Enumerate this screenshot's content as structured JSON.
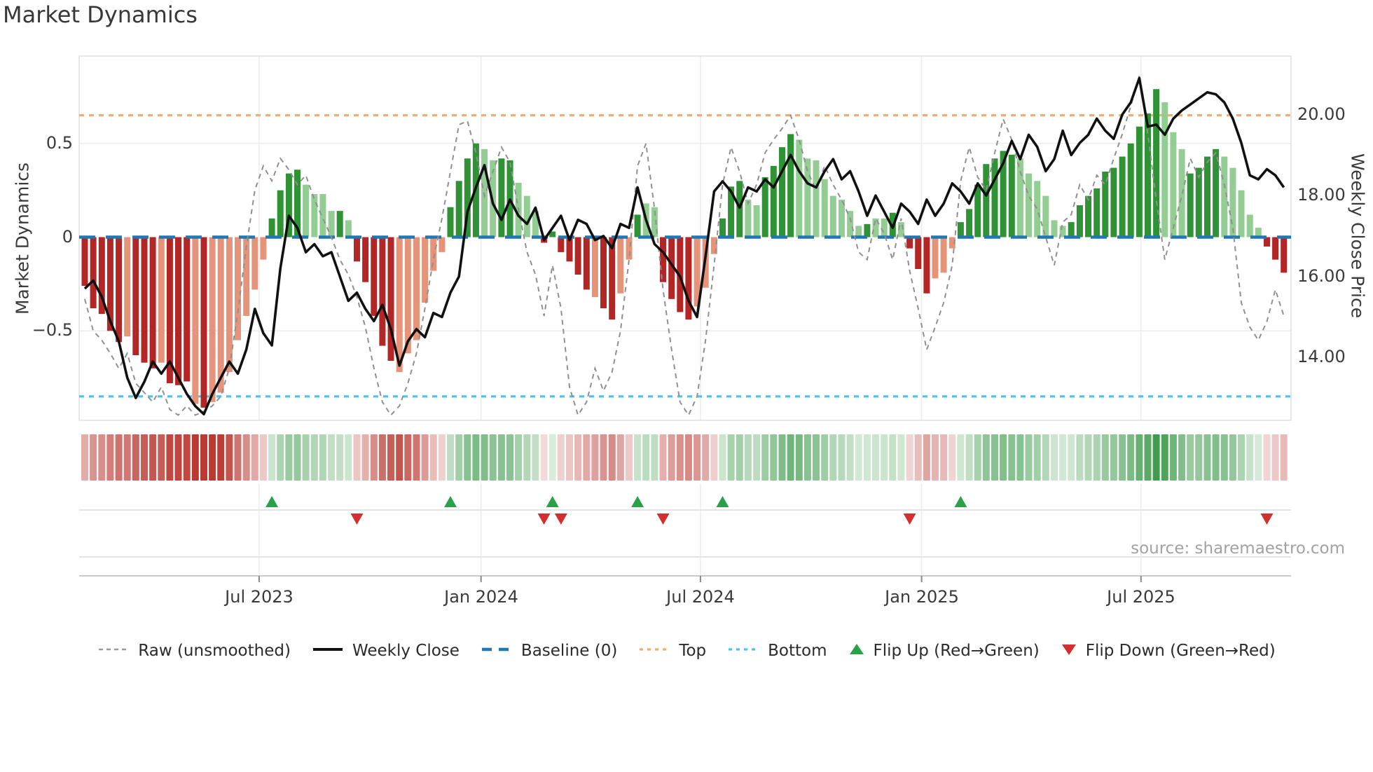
{
  "title": "Market Dynamics",
  "source": "source: sharemaestro.com",
  "axes": {
    "left": {
      "title": "Market Dynamics",
      "tick_labels": [
        "0.5",
        "0",
        "−0.5"
      ],
      "tick_values": [
        0.5,
        0,
        -0.5
      ]
    },
    "right": {
      "title": "Weekly Close Price",
      "tick_labels": [
        "20.00",
        "18.00",
        "16.00",
        "14.00"
      ],
      "tick_values": [
        20,
        18,
        16,
        14
      ]
    },
    "x": {
      "tick_labels": [
        "Jul 2023",
        "Jan 2024",
        "Jul 2024",
        "Jan 2025",
        "Jul 2025"
      ],
      "tick_weeks": [
        20.5,
        46.6,
        72.4,
        98.4,
        124.2
      ]
    }
  },
  "legend": [
    {
      "label": "Raw (unsmoothed)",
      "swatch": "dash-gray"
    },
    {
      "label": "Weekly Close",
      "swatch": "solid-black"
    },
    {
      "label": "Baseline (0)",
      "swatch": "dash-blue"
    },
    {
      "label": "Top",
      "swatch": "dot-orange"
    },
    {
      "label": "Bottom",
      "swatch": "dot-cyan"
    },
    {
      "label": "Flip Up (Red→Green)",
      "swatch": "tri-up"
    },
    {
      "label": "Flip Down (Green→Red)",
      "swatch": "tri-down"
    }
  ],
  "colors": {
    "bar_pos_strong": "#2f9235",
    "bar_pos_light": "#93cd93",
    "bar_neg_strong": "#b32626",
    "bar_neg_light": "#e59479",
    "weekly_close": "#111111",
    "raw": "#909090",
    "baseline": "#1f77b4",
    "top": "#f7ab6b",
    "bottom": "#44c8f1",
    "flip_up": "#2aa148",
    "flip_down": "#d32f2f",
    "grid": "#ebebf2",
    "spine": "#d9d9e0",
    "heat_pos": "52,150,66",
    "heat_neg": "186,58,50"
  },
  "chart_data": {
    "type": "bar+line",
    "title": "Market Dynamics",
    "x_start_date": "2023-02-10",
    "frequency": "weekly",
    "left_ylim": [
      -0.98,
      0.96
    ],
    "right_ylim": [
      12.45,
      21.42
    ],
    "baseline": 0,
    "top_level": 0.65,
    "bottom_level": -0.85,
    "bar_values": [
      -0.26,
      -0.38,
      -0.41,
      -0.5,
      -0.56,
      -0.53,
      -0.63,
      -0.67,
      -0.7,
      -0.67,
      -0.78,
      -0.79,
      -0.77,
      -0.89,
      -0.91,
      -0.88,
      -0.83,
      -0.72,
      -0.55,
      -0.42,
      -0.28,
      -0.12,
      0.1,
      0.25,
      0.34,
      0.36,
      0.28,
      0.23,
      0.23,
      0.14,
      0.14,
      0.09,
      -0.13,
      -0.24,
      -0.42,
      -0.58,
      -0.66,
      -0.72,
      -0.62,
      -0.55,
      -0.35,
      -0.18,
      -0.08,
      0.16,
      0.3,
      0.42,
      0.5,
      0.47,
      0.41,
      0.42,
      0.41,
      0.29,
      0.22,
      0.14,
      -0.03,
      0.03,
      -0.08,
      -0.13,
      -0.2,
      -0.28,
      -0.32,
      -0.38,
      -0.44,
      -0.3,
      -0.12,
      0.12,
      0.18,
      0.16,
      -0.24,
      -0.33,
      -0.4,
      -0.44,
      -0.37,
      -0.27,
      -0.09,
      0.1,
      0.27,
      0.3,
      0.2,
      0.17,
      0.32,
      0.38,
      0.48,
      0.55,
      0.52,
      0.42,
      0.41,
      0.31,
      0.22,
      0.2,
      0.14,
      0.06,
      0.07,
      0.1,
      0.1,
      0.13,
      0.08,
      -0.06,
      -0.17,
      -0.3,
      -0.22,
      -0.19,
      -0.06,
      0.08,
      0.15,
      0.28,
      0.39,
      0.42,
      0.46,
      0.44,
      0.42,
      0.34,
      0.3,
      0.22,
      0.09,
      0.06,
      0.08,
      0.17,
      0.22,
      0.26,
      0.35,
      0.37,
      0.43,
      0.5,
      0.59,
      0.66,
      0.79,
      0.72,
      0.56,
      0.47,
      0.34,
      0.37,
      0.43,
      0.47,
      0.43,
      0.37,
      0.25,
      0.12,
      0.05,
      -0.05,
      -0.12,
      -0.19
    ],
    "bar_shade": [
      "d",
      "d",
      "d",
      "d",
      "d",
      "l",
      "d",
      "d",
      "d",
      "l",
      "d",
      "d",
      "d",
      "l",
      "d",
      "l",
      "l",
      "l",
      "l",
      "l",
      "l",
      "l",
      "d",
      "d",
      "d",
      "d",
      "l",
      "l",
      "l",
      "l",
      "d",
      "l",
      "d",
      "d",
      "d",
      "d",
      "d",
      "l",
      "l",
      "l",
      "l",
      "l",
      "l",
      "d",
      "d",
      "d",
      "d",
      "l",
      "l",
      "d",
      "d",
      "l",
      "l",
      "l",
      "d",
      "d",
      "d",
      "d",
      "d",
      "d",
      "l",
      "d",
      "d",
      "l",
      "l",
      "d",
      "l",
      "l",
      "d",
      "d",
      "d",
      "d",
      "l",
      "l",
      "l",
      "d",
      "d",
      "d",
      "l",
      "l",
      "d",
      "d",
      "d",
      "d",
      "l",
      "l",
      "l",
      "l",
      "l",
      "l",
      "l",
      "l",
      "d",
      "l",
      "l",
      "d",
      "l",
      "d",
      "d",
      "d",
      "l",
      "l",
      "l",
      "d",
      "d",
      "d",
      "d",
      "d",
      "d",
      "d",
      "l",
      "l",
      "l",
      "l",
      "l",
      "l",
      "d",
      "d",
      "d",
      "d",
      "d",
      "d",
      "d",
      "d",
      "d",
      "d",
      "d",
      "l",
      "l",
      "l",
      "d",
      "d",
      "d",
      "d",
      "l",
      "l",
      "l",
      "l",
      "l",
      "d",
      "d",
      "d"
    ],
    "raw": [
      -0.33,
      -0.5,
      -0.55,
      -0.62,
      -0.7,
      -0.62,
      -0.78,
      -0.83,
      -0.88,
      -0.8,
      -0.92,
      -0.95,
      -0.9,
      -0.95,
      -0.93,
      -0.9,
      -0.85,
      -0.7,
      -0.4,
      -0.05,
      0.25,
      0.38,
      0.3,
      0.42,
      0.36,
      0.28,
      0.33,
      0.2,
      0.1,
      0.0,
      -0.12,
      -0.2,
      -0.32,
      -0.48,
      -0.7,
      -0.88,
      -0.95,
      -0.9,
      -0.78,
      -0.62,
      -0.38,
      -0.12,
      0.1,
      0.35,
      0.6,
      0.62,
      0.45,
      0.22,
      0.35,
      0.48,
      0.4,
      0.15,
      -0.08,
      -0.2,
      -0.42,
      -0.15,
      -0.38,
      -0.8,
      -0.95,
      -0.88,
      -0.7,
      -0.82,
      -0.72,
      -0.5,
      -0.12,
      0.38,
      0.5,
      0.15,
      -0.28,
      -0.6,
      -0.88,
      -0.95,
      -0.85,
      -0.55,
      -0.15,
      0.28,
      0.48,
      0.35,
      0.18,
      0.28,
      0.45,
      0.52,
      0.58,
      0.65,
      0.52,
      0.35,
      0.25,
      0.38,
      0.28,
      0.2,
      0.1,
      -0.08,
      -0.12,
      0.1,
      0.02,
      -0.12,
      0.1,
      -0.18,
      -0.38,
      -0.6,
      -0.48,
      -0.35,
      -0.15,
      0.3,
      0.48,
      0.32,
      0.25,
      0.45,
      0.63,
      0.52,
      0.35,
      0.22,
      0.15,
      0.0,
      -0.15,
      0.08,
      0.12,
      0.28,
      0.2,
      0.33,
      0.28,
      0.42,
      0.55,
      0.7,
      0.86,
      0.55,
      0.2,
      -0.12,
      0.05,
      0.22,
      0.42,
      0.32,
      0.4,
      0.45,
      0.28,
      0.05,
      -0.35,
      -0.48,
      -0.55,
      -0.45,
      -0.28,
      -0.42
    ],
    "weekly_close": [
      15.7,
      15.9,
      15.5,
      14.9,
      14.4,
      13.5,
      13.0,
      13.4,
      13.9,
      13.6,
      13.9,
      13.5,
      13.1,
      12.8,
      12.6,
      13.1,
      13.5,
      13.9,
      13.6,
      14.2,
      15.2,
      14.6,
      14.3,
      16.2,
      17.5,
      17.2,
      16.6,
      16.8,
      16.5,
      16.6,
      16.0,
      15.4,
      15.6,
      15.2,
      14.9,
      15.3,
      14.7,
      13.8,
      14.4,
      14.7,
      14.5,
      15.1,
      15.0,
      15.6,
      16.0,
      17.6,
      18.2,
      18.75,
      17.8,
      17.4,
      17.9,
      17.5,
      17.3,
      17.7,
      16.9,
      17.2,
      17.5,
      16.9,
      17.4,
      17.3,
      16.9,
      17.0,
      16.7,
      17.3,
      17.2,
      18.2,
      17.4,
      16.8,
      16.6,
      16.3,
      16.0,
      15.4,
      15.0,
      16.5,
      18.1,
      18.35,
      18.1,
      17.7,
      18.2,
      18.1,
      18.4,
      18.2,
      18.6,
      19.0,
      18.6,
      18.3,
      18.2,
      18.6,
      18.9,
      18.4,
      18.6,
      18.1,
      17.5,
      18.0,
      17.6,
      17.2,
      17.8,
      17.6,
      17.3,
      17.9,
      17.5,
      17.8,
      18.3,
      18.1,
      17.8,
      18.3,
      18.0,
      18.4,
      18.8,
      19.35,
      18.9,
      19.5,
      19.2,
      18.6,
      18.9,
      19.6,
      19.0,
      19.3,
      19.5,
      19.9,
      19.6,
      19.4,
      20.0,
      20.3,
      20.9,
      19.7,
      19.75,
      19.5,
      19.9,
      20.1,
      20.25,
      20.4,
      20.55,
      20.5,
      20.3,
      19.9,
      19.3,
      18.5,
      18.4,
      18.65,
      18.5,
      18.2
    ],
    "flip_up_weeks": [
      22,
      43,
      55,
      65,
      75,
      103
    ],
    "flip_down_weeks": [
      32,
      54,
      56,
      68,
      97,
      139
    ],
    "heatmap": "same weekly bar_values rendered as color intensity strip",
    "legend_position": "bottom",
    "grid": true
  }
}
